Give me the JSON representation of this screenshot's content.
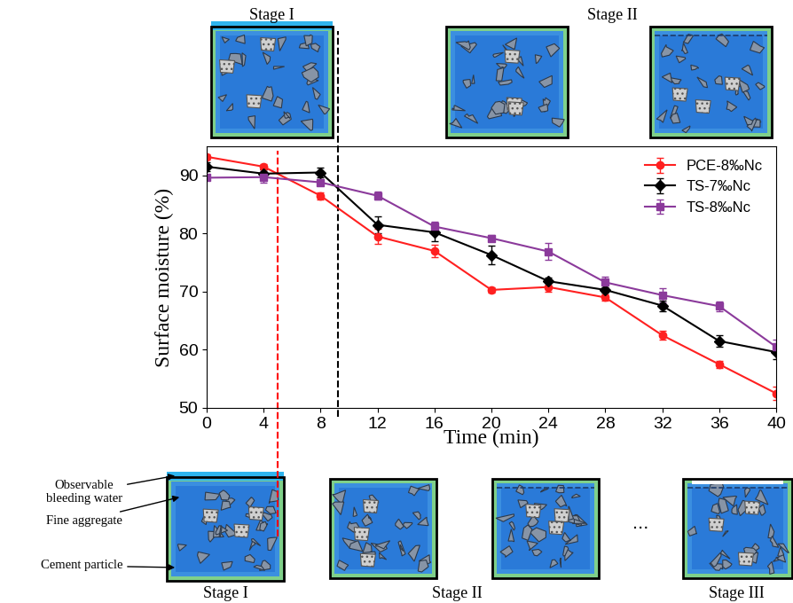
{
  "chart_data": {
    "type": "line",
    "xlabel": "Time (min)",
    "ylabel": "Surface moisture (%)",
    "x": [
      0,
      4,
      8,
      12,
      16,
      20,
      24,
      28,
      32,
      36,
      40
    ],
    "xlim": [
      0,
      40
    ],
    "xticks": [
      0,
      4,
      8,
      12,
      16,
      20,
      24,
      28,
      32,
      36,
      40
    ],
    "ylim": [
      50,
      95
    ],
    "yticks": [
      50,
      60,
      70,
      80,
      90
    ],
    "legend": "upper right",
    "series": [
      {
        "name": "PCE-8‰Nc",
        "color": "#ff2020",
        "marker": "o",
        "line_style": "solid",
        "values": [
          93.2,
          91.5,
          86.5,
          79.5,
          77.0,
          70.3,
          70.8,
          69.0,
          62.5,
          57.5,
          52.5
        ],
        "errors": [
          0.5,
          0.5,
          0.6,
          1.3,
          1.0,
          0.5,
          0.8,
          0.6,
          0.7,
          0.6,
          1.2
        ]
      },
      {
        "name": "TS-7‰Nc",
        "color": "#000000",
        "marker": "D",
        "line_style": "solid",
        "values": [
          91.5,
          90.3,
          90.5,
          81.5,
          80.2,
          76.3,
          71.8,
          70.3,
          67.6,
          61.5,
          59.6
        ],
        "errors": [
          0.8,
          0.8,
          0.8,
          1.5,
          1.5,
          1.6,
          0.7,
          0.5,
          0.9,
          1.0,
          1.2
        ]
      },
      {
        "name": "TS-8‰Nc",
        "color": "#8b3a9b",
        "marker": "s",
        "line_style": "solid",
        "values": [
          89.6,
          89.7,
          88.8,
          86.5,
          81.2,
          79.2,
          76.9,
          71.6,
          69.4,
          67.5,
          60.5
        ],
        "errors": [
          0.4,
          1.0,
          0.5,
          0.7,
          0.8,
          0.5,
          1.5,
          1.0,
          1.2,
          0.8,
          1.2
        ]
      }
    ],
    "stage_lines": [
      {
        "x": 5,
        "color": "#ff0000",
        "line_style": "dashed"
      },
      {
        "x": 9.2,
        "color": "#000000",
        "line_style": "dashed"
      }
    ],
    "schematic_labels": {
      "top": [
        "Stage I",
        "Stage II"
      ],
      "bottom": [
        "Stage I",
        "Stage II",
        "Stage III"
      ],
      "ellipsis": "...",
      "legend_texts": [
        "Observable\nbleeding water",
        "Fine aggregate",
        "Cement particle"
      ]
    }
  }
}
